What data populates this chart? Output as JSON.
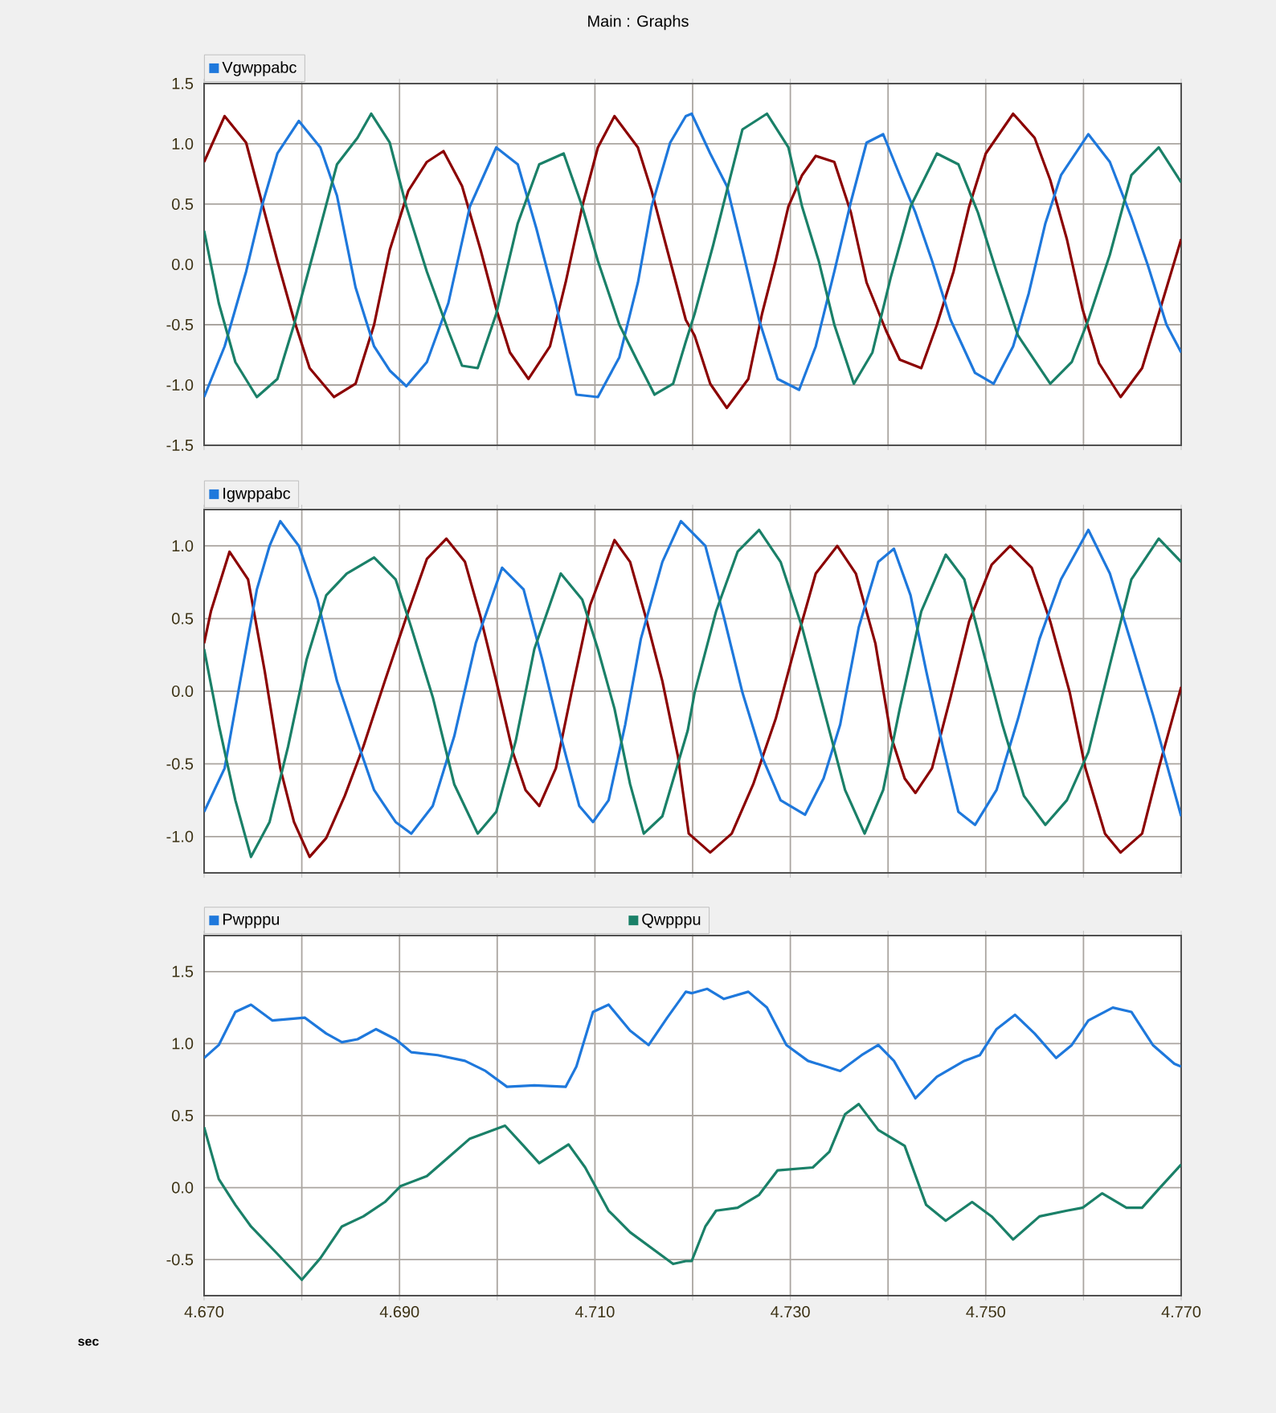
{
  "chart_data": [
    {
      "type": "line",
      "title": "Main : Graphs",
      "grid": true,
      "legend": "top left",
      "tick_labels": "y",
      "line_style": "solid",
      "xlim": [
        4.67,
        4.77
      ],
      "ylim": [
        -1.5,
        1.5
      ],
      "xticks": [
        {
          "value": 4.67,
          "label": null
        },
        {
          "value": 4.68,
          "label": null
        },
        {
          "value": 4.69,
          "label": null
        },
        {
          "value": 4.7,
          "label": null
        },
        {
          "value": 4.71,
          "label": null
        },
        {
          "value": 4.72,
          "label": null
        },
        {
          "value": 4.73,
          "label": null
        },
        {
          "value": 4.74,
          "label": null
        },
        {
          "value": 4.75,
          "label": null
        },
        {
          "value": 4.76,
          "label": null
        },
        {
          "value": 4.77,
          "label": null
        }
      ],
      "yticks": [
        {
          "value": -1.5,
          "label": "-1.5"
        },
        {
          "value": -1,
          "label": "-1.0"
        },
        {
          "value": -0.5,
          "label": "-0.5"
        },
        {
          "value": 0,
          "label": "0.0"
        },
        {
          "value": 0.5,
          "label": "0.5"
        },
        {
          "value": 1,
          "label": "1.0"
        },
        {
          "value": 1.5,
          "label": "1.5"
        }
      ],
      "series": [
        {
          "color": "#8b0000",
          "x": [
            4.67,
            4.6721,
            4.6743,
            4.6759,
            4.6775,
            4.6792,
            4.6808,
            4.6833,
            4.6855,
            4.6874,
            4.689,
            4.6909,
            4.6928,
            4.6945,
            4.6964,
            4.6983,
            4.6999,
            4.7013,
            4.7032,
            4.7054,
            4.707,
            4.7087,
            4.7103,
            4.712,
            4.7144,
            4.7158,
            4.7174,
            4.7193,
            4.7202,
            4.7218,
            4.7235,
            4.7257,
            4.7271,
            4.7285,
            4.7298,
            4.7312,
            4.7326,
            4.7345,
            4.7362,
            4.7378,
            4.7398,
            4.7412,
            4.7434,
            4.745,
            4.7467,
            4.7483,
            4.75,
            4.7528,
            4.755,
            4.7566,
            4.7583,
            4.7599,
            4.7616,
            4.7638,
            4.766,
            4.7677,
            4.77
          ],
          "values": [
            0.85,
            1.23,
            1.01,
            0.52,
            0.03,
            -0.46,
            -0.86,
            -1.1,
            -0.99,
            -0.5,
            0.12,
            0.61,
            0.85,
            0.94,
            0.65,
            0.12,
            -0.37,
            -0.73,
            -0.95,
            -0.68,
            -0.15,
            0.48,
            0.97,
            1.23,
            0.97,
            0.61,
            0.12,
            -0.46,
            -0.59,
            -0.99,
            -1.19,
            -0.95,
            -0.41,
            0.03,
            0.48,
            0.74,
            0.9,
            0.85,
            0.43,
            -0.15,
            -0.55,
            -0.79,
            -0.86,
            -0.5,
            -0.06,
            0.48,
            0.92,
            1.25,
            1.05,
            0.7,
            0.21,
            -0.37,
            -0.82,
            -1.1,
            -0.86,
            -0.41,
            0.21
          ]
        },
        {
          "name": "Vgwppabc",
          "color": "#1e78dc",
          "x": [
            4.67,
            4.6721,
            4.6743,
            4.6759,
            4.6775,
            4.6797,
            4.6819,
            4.6836,
            4.6855,
            4.6874,
            4.689,
            4.6907,
            4.6928,
            4.695,
            4.6972,
            4.6999,
            4.7021,
            4.704,
            4.706,
            4.7081,
            4.7103,
            4.7125,
            4.7144,
            4.7158,
            4.7177,
            4.7193,
            4.7199,
            4.7218,
            4.7235,
            4.7251,
            4.7268,
            4.7287,
            4.7309,
            4.7326,
            4.7345,
            4.7362,
            4.7378,
            4.7395,
            4.7412,
            4.7428,
            4.7445,
            4.7464,
            4.7489,
            4.7508,
            4.7528,
            4.7544,
            4.7561,
            4.7577,
            4.7605,
            4.7627,
            4.7649,
            4.7666,
            4.7685,
            4.77
          ],
          "values": [
            -1.1,
            -0.68,
            -0.06,
            0.48,
            0.92,
            1.19,
            0.97,
            0.57,
            -0.19,
            -0.68,
            -0.88,
            -1.01,
            -0.81,
            -0.32,
            0.48,
            0.97,
            0.83,
            0.3,
            -0.32,
            -1.08,
            -1.1,
            -0.77,
            -0.15,
            0.48,
            1.01,
            1.23,
            1.25,
            0.92,
            0.65,
            0.12,
            -0.46,
            -0.95,
            -1.04,
            -0.68,
            -0.06,
            0.52,
            1.01,
            1.08,
            0.74,
            0.43,
            0.03,
            -0.46,
            -0.9,
            -0.99,
            -0.68,
            -0.24,
            0.34,
            0.74,
            1.08,
            0.85,
            0.39,
            -0.01,
            -0.5,
            -0.73
          ]
        },
        {
          "color": "#1a8068",
          "x": [
            4.67,
            4.6715,
            4.6732,
            4.6754,
            4.6775,
            4.6792,
            4.6814,
            4.6836,
            4.6857,
            4.6871,
            4.689,
            4.6907,
            4.6928,
            4.695,
            4.6964,
            4.698,
            4.6999,
            4.7021,
            4.7043,
            4.7068,
            4.7087,
            4.7103,
            4.7125,
            4.7144,
            4.7161,
            4.718,
            4.7193,
            4.7202,
            4.7221,
            4.7235,
            4.7251,
            4.7276,
            4.7298,
            4.7312,
            4.7329,
            4.7345,
            4.7365,
            4.7384,
            4.7403,
            4.7423,
            4.745,
            4.7472,
            4.7492,
            4.7511,
            4.7533,
            4.7566,
            4.7588,
            4.7605,
            4.7627,
            4.7649,
            4.7677,
            4.77
          ],
          "values": [
            0.28,
            -0.32,
            -0.81,
            -1.1,
            -0.95,
            -0.5,
            0.16,
            0.83,
            1.05,
            1.25,
            1.01,
            0.48,
            -0.06,
            -0.55,
            -0.84,
            -0.86,
            -0.41,
            0.34,
            0.83,
            0.92,
            0.48,
            0.03,
            -0.5,
            -0.81,
            -1.08,
            -0.99,
            -0.64,
            -0.41,
            0.16,
            0.61,
            1.12,
            1.25,
            0.97,
            0.48,
            0.03,
            -0.5,
            -0.99,
            -0.73,
            -0.1,
            0.48,
            0.92,
            0.83,
            0.43,
            -0.06,
            -0.59,
            -0.99,
            -0.81,
            -0.46,
            0.08,
            0.74,
            0.97,
            0.68
          ]
        }
      ]
    },
    {
      "type": "line",
      "grid": true,
      "legend": "top left",
      "tick_labels": "y",
      "line_style": "solid",
      "xlim": [
        4.67,
        4.77
      ],
      "ylim": [
        -1.25,
        1.25
      ],
      "xticks": [
        {
          "value": 4.67,
          "label": null
        },
        {
          "value": 4.68,
          "label": null
        },
        {
          "value": 4.69,
          "label": null
        },
        {
          "value": 4.7,
          "label": null
        },
        {
          "value": 4.71,
          "label": null
        },
        {
          "value": 4.72,
          "label": null
        },
        {
          "value": 4.73,
          "label": null
        },
        {
          "value": 4.74,
          "label": null
        },
        {
          "value": 4.75,
          "label": null
        },
        {
          "value": 4.76,
          "label": null
        },
        {
          "value": 4.77,
          "label": null
        }
      ],
      "yticks": [
        {
          "value": -1,
          "label": "-1.0"
        },
        {
          "value": -0.5,
          "label": "-0.5"
        },
        {
          "value": 0,
          "label": "0.0"
        },
        {
          "value": 0.5,
          "label": "0.5"
        },
        {
          "value": 1,
          "label": "1.0"
        }
      ],
      "series": [
        {
          "color": "#8b0000",
          "x": [
            4.67,
            4.6707,
            4.6726,
            4.6745,
            4.6762,
            4.6778,
            4.6792,
            4.6808,
            4.6825,
            4.6844,
            4.6863,
            4.6885,
            4.6907,
            4.6928,
            4.6948,
            4.6967,
            4.6983,
            4.6999,
            4.7016,
            4.7029,
            4.7043,
            4.706,
            4.7076,
            4.7095,
            4.712,
            4.7136,
            4.7152,
            4.7169,
            4.7185,
            4.7196,
            4.7218,
            4.724,
            4.7262,
            4.7285,
            4.7307,
            4.7326,
            4.7348,
            4.7367,
            4.7387,
            4.7403,
            4.7417,
            4.7428,
            4.7445,
            4.7464,
            4.7483,
            4.7506,
            4.7525,
            4.7547,
            4.7566,
            4.7586,
            4.7602,
            4.7622,
            4.7638,
            4.766,
            4.7677,
            4.77
          ],
          "values": [
            0.33,
            0.55,
            0.96,
            0.77,
            0.14,
            -0.53,
            -0.9,
            -1.14,
            -1.01,
            -0.72,
            -0.38,
            0.07,
            0.51,
            0.91,
            1.05,
            0.89,
            0.51,
            0.07,
            -0.42,
            -0.68,
            -0.79,
            -0.53,
            -0.01,
            0.59,
            1.04,
            0.89,
            0.51,
            0.07,
            -0.45,
            -0.98,
            -1.11,
            -0.98,
            -0.64,
            -0.19,
            0.36,
            0.81,
            1.0,
            0.81,
            0.33,
            -0.31,
            -0.6,
            -0.7,
            -0.53,
            -0.04,
            0.48,
            0.87,
            1.0,
            0.85,
            0.48,
            -0.01,
            -0.53,
            -0.98,
            -1.11,
            -0.98,
            -0.53,
            0.03
          ]
        },
        {
          "name": "Igwppabc",
          "color": "#1e78dc",
          "x": [
            4.67,
            4.6721,
            4.6737,
            4.6754,
            4.6767,
            4.6778,
            4.6797,
            4.6816,
            4.6836,
            4.6855,
            4.6874,
            4.6896,
            4.6912,
            4.6934,
            4.6956,
            4.6978,
            4.7005,
            4.7027,
            4.7046,
            4.7065,
            4.7084,
            4.7098,
            4.7114,
            4.7131,
            4.7147,
            4.7169,
            4.7188,
            4.7213,
            4.7232,
            4.7251,
            4.7271,
            4.729,
            4.7315,
            4.7334,
            4.7351,
            4.737,
            4.739,
            4.7406,
            4.7423,
            4.7439,
            4.7456,
            4.7472,
            4.7489,
            4.7511,
            4.7533,
            4.7555,
            4.7577,
            4.7605,
            4.7627,
            4.7649,
            4.7671,
            4.77
          ],
          "values": [
            -0.83,
            -0.53,
            0.07,
            0.7,
            1.0,
            1.17,
            1.0,
            0.63,
            0.07,
            -0.31,
            -0.68,
            -0.9,
            -0.98,
            -0.79,
            -0.31,
            0.33,
            0.85,
            0.7,
            0.22,
            -0.31,
            -0.79,
            -0.9,
            -0.75,
            -0.23,
            0.36,
            0.89,
            1.17,
            1.0,
            0.51,
            -0.01,
            -0.45,
            -0.75,
            -0.85,
            -0.6,
            -0.23,
            0.44,
            0.89,
            0.98,
            0.66,
            0.14,
            -0.38,
            -0.83,
            -0.92,
            -0.68,
            -0.19,
            0.36,
            0.77,
            1.11,
            0.81,
            0.33,
            -0.16,
            -0.86
          ]
        },
        {
          "color": "#1a8068",
          "x": [
            4.67,
            4.6715,
            4.6732,
            4.6748,
            4.6767,
            4.6786,
            4.6805,
            4.6825,
            4.6846,
            4.6874,
            4.6896,
            4.6912,
            4.6934,
            4.6956,
            4.698,
            4.6999,
            4.7019,
            4.7038,
            4.7065,
            4.7087,
            4.7103,
            4.712,
            4.7136,
            4.715,
            4.7169,
            4.7195,
            4.7202,
            4.7224,
            4.7246,
            4.7268,
            4.729,
            4.7312,
            4.7334,
            4.7356,
            4.7376,
            4.7395,
            4.7412,
            4.7434,
            4.7459,
            4.7478,
            4.7494,
            4.7517,
            4.7539,
            4.7561,
            4.7583,
            4.7605,
            4.7627,
            4.7649,
            4.7677,
            4.77
          ],
          "values": [
            0.29,
            -0.23,
            -0.75,
            -1.14,
            -0.9,
            -0.38,
            0.22,
            0.66,
            0.81,
            0.92,
            0.77,
            0.44,
            -0.04,
            -0.64,
            -0.98,
            -0.83,
            -0.34,
            0.29,
            0.81,
            0.63,
            0.29,
            -0.12,
            -0.64,
            -0.98,
            -0.86,
            -0.27,
            -0.01,
            0.55,
            0.96,
            1.11,
            0.89,
            0.44,
            -0.12,
            -0.68,
            -0.98,
            -0.68,
            -0.12,
            0.55,
            0.94,
            0.77,
            0.36,
            -0.23,
            -0.72,
            -0.92,
            -0.75,
            -0.42,
            0.18,
            0.77,
            1.05,
            0.89
          ]
        }
      ]
    },
    {
      "type": "line",
      "grid": true,
      "legend": "top left",
      "xlabel": "sec",
      "line_style": "solid",
      "xlim": [
        4.67,
        4.77
      ],
      "ylim": [
        -0.75,
        1.75
      ],
      "xticks": [
        {
          "value": 4.67,
          "label": "4.670"
        },
        {
          "value": 4.68,
          "label": null
        },
        {
          "value": 4.69,
          "label": "4.690"
        },
        {
          "value": 4.7,
          "label": null
        },
        {
          "value": 4.71,
          "label": "4.710"
        },
        {
          "value": 4.72,
          "label": null
        },
        {
          "value": 4.73,
          "label": "4.730"
        },
        {
          "value": 4.74,
          "label": null
        },
        {
          "value": 4.75,
          "label": "4.750"
        },
        {
          "value": 4.76,
          "label": null
        },
        {
          "value": 4.77,
          "label": "4.770"
        }
      ],
      "yticks": [
        {
          "value": -0.5,
          "label": "-0.5"
        },
        {
          "value": 0,
          "label": "0.0"
        },
        {
          "value": 0.5,
          "label": "0.5"
        },
        {
          "value": 1,
          "label": "1.0"
        },
        {
          "value": 1.5,
          "label": "1.5"
        }
      ],
      "series": [
        {
          "name": "Pwpppu",
          "color": "#1e78dc",
          "x": [
            4.67,
            4.6715,
            4.6732,
            4.6748,
            4.677,
            4.6803,
            4.6825,
            4.6841,
            4.6857,
            4.6876,
            4.6896,
            4.6912,
            4.6939,
            4.6967,
            4.6988,
            4.701,
            4.7038,
            4.707,
            4.7081,
            4.7098,
            4.7114,
            4.7136,
            4.7155,
            4.7174,
            4.7193,
            4.7199,
            4.7215,
            4.7232,
            4.7257,
            4.7276,
            4.7296,
            4.7318,
            4.7351,
            4.7373,
            4.739,
            4.7406,
            4.7428,
            4.745,
            4.7478,
            4.7494,
            4.7511,
            4.753,
            4.755,
            4.7572,
            4.7588,
            4.7605,
            4.763,
            4.7649,
            4.7671,
            4.7693,
            4.77
          ],
          "values": [
            0.9,
            0.99,
            1.22,
            1.27,
            1.16,
            1.18,
            1.07,
            1.01,
            1.03,
            1.1,
            1.03,
            0.94,
            0.92,
            0.88,
            0.81,
            0.7,
            0.71,
            0.7,
            0.84,
            1.22,
            1.27,
            1.09,
            0.99,
            1.18,
            1.36,
            1.35,
            1.38,
            1.31,
            1.36,
            1.25,
            0.99,
            0.88,
            0.81,
            0.92,
            0.99,
            0.88,
            0.62,
            0.77,
            0.88,
            0.92,
            1.1,
            1.2,
            1.07,
            0.9,
            0.99,
            1.16,
            1.25,
            1.22,
            0.99,
            0.86,
            0.84
          ]
        },
        {
          "name": "Qwpppu",
          "color": "#1a8068",
          "x": [
            4.67,
            4.6715,
            4.6732,
            4.6748,
            4.6775,
            4.68,
            4.6819,
            4.6841,
            4.6863,
            4.6885,
            4.6901,
            4.6928,
            4.695,
            4.6972,
            4.7008,
            4.7027,
            4.7043,
            4.7073,
            4.709,
            4.7114,
            4.7136,
            4.7158,
            4.718,
            4.7193,
            4.7199,
            4.7213,
            4.7224,
            4.7246,
            4.7268,
            4.7287,
            4.7323,
            4.734,
            4.7356,
            4.737,
            4.739,
            4.7417,
            4.7439,
            4.7459,
            4.7486,
            4.7506,
            4.7528,
            4.7555,
            4.7583,
            4.7599,
            4.7619,
            4.7644,
            4.766,
            4.7677,
            4.77
          ],
          "values": [
            0.42,
            0.06,
            -0.12,
            -0.27,
            -0.46,
            -0.64,
            -0.49,
            -0.27,
            -0.2,
            -0.1,
            0.01,
            0.08,
            0.21,
            0.34,
            0.43,
            0.29,
            0.17,
            0.3,
            0.14,
            -0.16,
            -0.31,
            -0.42,
            -0.53,
            -0.51,
            -0.51,
            -0.27,
            -0.16,
            -0.14,
            -0.05,
            0.12,
            0.14,
            0.25,
            0.51,
            0.58,
            0.4,
            0.29,
            -0.12,
            -0.23,
            -0.1,
            -0.2,
            -0.36,
            -0.2,
            -0.16,
            -0.14,
            -0.04,
            -0.14,
            -0.14,
            -0.01,
            0.16
          ]
        }
      ]
    }
  ]
}
